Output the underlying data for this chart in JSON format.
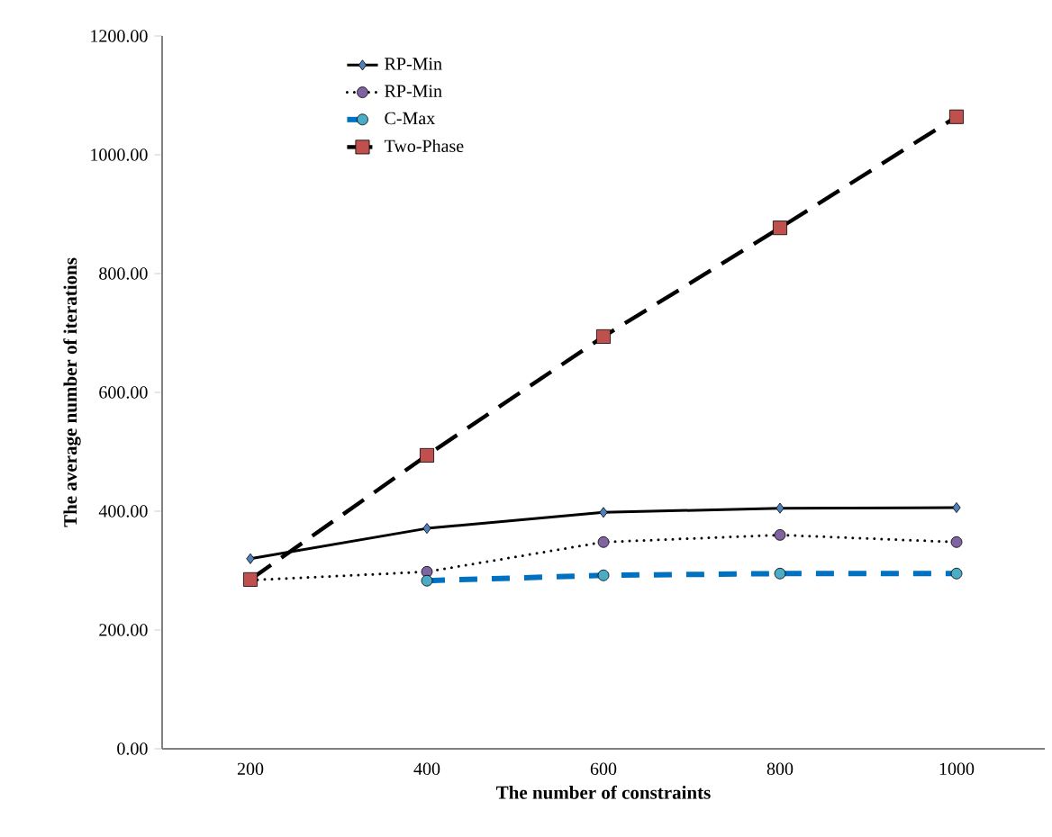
{
  "chart_data": {
    "type": "line",
    "xlabel": "The number of constraints",
    "ylabel": "The  average number of iterations",
    "categories": [
      "200",
      "400",
      "600",
      "800",
      "1000"
    ],
    "series": [
      {
        "name": "RP-Min",
        "color": "#000000",
        "colors": [
          "#4f81bd",
          "#4f81bd",
          "#4f81bd",
          "#4f81bd",
          "#4f81bd"
        ],
        "marker": "diamond",
        "line_style": "solid",
        "values": [
          320,
          371,
          398,
          405,
          406
        ]
      },
      {
        "name": "RP-Min",
        "color": "#000000",
        "colors": [
          "#8064a2",
          "#8064a2",
          "#8064a2",
          "#8064a2",
          "#8064a2"
        ],
        "marker": "circle",
        "line_style": "dotted",
        "values": [
          284,
          298,
          348,
          360,
          348
        ]
      },
      {
        "name": "C-Max",
        "color": "#0070c0",
        "colors": [
          "#4bacc6",
          "#4bacc6",
          "#4bacc6",
          "#4bacc6",
          "#4bacc6"
        ],
        "marker": "circle",
        "line_style": "dashed",
        "values": [
          null,
          283,
          292,
          295,
          295
        ]
      },
      {
        "name": "Two-Phase",
        "color": "#000000",
        "colors": [
          "#c0504d",
          "#c0504d",
          "#c0504d",
          "#c0504d",
          "#c0504d"
        ],
        "marker": "square",
        "line_style": "dashed",
        "values": [
          285,
          494,
          694,
          877,
          1064
        ]
      }
    ],
    "ylim": [
      0,
      1200
    ],
    "yticks": [
      {
        "value": 0,
        "label": "0.00"
      },
      {
        "value": 200,
        "label": "200.00"
      },
      {
        "value": 400,
        "label": "400.00"
      },
      {
        "value": 600,
        "label": "600.00"
      },
      {
        "value": 800,
        "label": "800.00"
      },
      {
        "value": 1000,
        "label": "1000.00"
      },
      {
        "value": 1200,
        "label": "1200.00"
      }
    ],
    "legend": "top left",
    "grid": false
  }
}
